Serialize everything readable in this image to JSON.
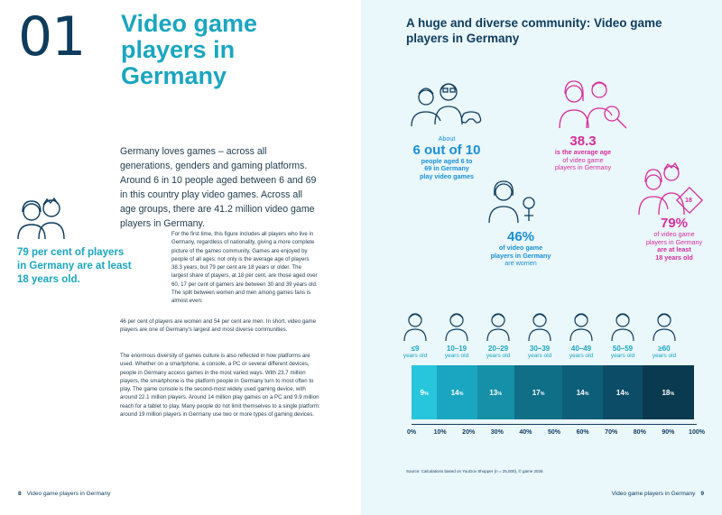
{
  "left_page": {
    "chapter_number": "01",
    "chapter_title": "Video game players in Germany",
    "intro": "Germany loves games – across all generations, genders and gaming platforms. Around 6 in 10 people aged between 6 and 69 in this country play video games. Across all age groups, there are 41.2 million video game players in Germany.",
    "body_a": "For the first time, this figure includes all players who live in Germany, regardless of nationality, giving a more complete picture of the games community. Games are enjoyed by people of all ages: not only is the average age of players 38.3 years, but 79 per cent are 18 years or older. The largest share of players, at 18 per cent, are those aged over 60. 17 per cent of gamers are between 30 and 39 years old. The split between women and men among games fans is almost even:",
    "body_b": "46 per cent of players are women and 54 per cent are men. In short, video game players are one of Germany's largest and most diverse communities.",
    "body_c": "The enormous diversity of games culture is also reflected in how platforms are used. Whether on a smartphone, a console, a PC or several different devices, people in Germany access games in the most varied ways. With 23.7 million players, the smartphone is the platform people in Germany turn to most often to play. The game console is the second-most widely used gaming device, with around 22.1 million players. Around 14 million play games on a PC and 9.9 million reach for a tablet to play. Many people do not limit themselves to a single platform: around 19 million players in Germany use two or more types of gaming devices.",
    "callout": "79 per cent of players in Germany are at least 18 years old.",
    "footer_page": "8",
    "footer_text": "Video game players in Germany"
  },
  "right_page": {
    "title": "A huge and diverse community: Video game players in Germany",
    "stat1": {
      "l1": "About",
      "l2": "6 out of 10",
      "l3": "people aged 6 to",
      "l4": "69 in Germany",
      "l5": "play video games"
    },
    "stat2": {
      "l1": "38.3",
      "l2": "is the average age",
      "l3": "of video game",
      "l4": "players in Germany"
    },
    "stat3": {
      "l1": "46%",
      "l2": "of video game",
      "l3": "players in Germany",
      "l4": "are women"
    },
    "stat4": {
      "l1": "79%",
      "l2": "of video game",
      "l3": "players in Germany",
      "l4": "are at least",
      "l5": "18 years old",
      "badge": "18"
    },
    "source": "Source: Calculations based on YouGov Shopper (n = 25,000), © game 2026",
    "footer_text": "Video game players in Germany",
    "footer_page": "9"
  },
  "age_groups": [
    {
      "age": "≤9",
      "label": "years old"
    },
    {
      "age": "10–19",
      "label": "years old"
    },
    {
      "age": "20–29",
      "label": "years old"
    },
    {
      "age": "30–39",
      "label": "years old"
    },
    {
      "age": "40–49",
      "label": "years old"
    },
    {
      "age": "50–59",
      "label": "years old"
    },
    {
      "age": "≥60",
      "label": "years old"
    }
  ],
  "chart_data": {
    "type": "bar",
    "categories": [
      "≤9",
      "10–19",
      "20–29",
      "30–39",
      "40–49",
      "50–59",
      "≥60"
    ],
    "values": [
      9,
      14,
      13,
      17,
      14,
      14,
      18
    ],
    "value_unit": "%",
    "colors": [
      "#27c6dd",
      "#1aa6c0",
      "#1590a8",
      "#0e6f87",
      "#0d5e78",
      "#0c4c66",
      "#0a3a50"
    ],
    "axis_ticks": [
      "0%",
      "10%",
      "20%",
      "30%",
      "40%",
      "50%",
      "60%",
      "70%",
      "80%",
      "90%",
      "100%"
    ],
    "xlim": [
      0,
      100
    ]
  }
}
